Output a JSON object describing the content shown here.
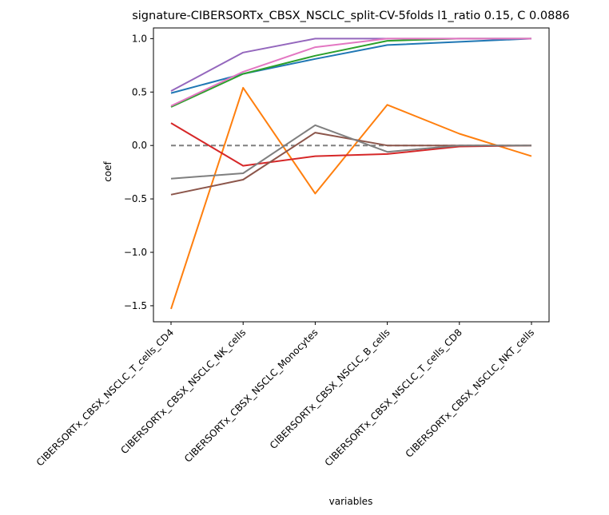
{
  "chart_data": {
    "type": "line",
    "title": "signature-CIBERSORTx_CBSX_NSCLC_split-CV-5folds l1_ratio 0.15, C 0.0886",
    "xlabel": "variables",
    "ylabel": "coef",
    "categories": [
      "CIBERSORTx_CBSX_NSCLC_T_cells_CD4",
      "CIBERSORTx_CBSX_NSCLC_NK_cells",
      "CIBERSORTx_CBSX_NSCLC_Monocytes",
      "CIBERSORTx_CBSX_NSCLC_B_cells",
      "CIBERSORTx_CBSX_NSCLC_T_cells_CD8",
      "CIBERSORTx_CBSX_NSCLC_NKT_cells"
    ],
    "ylim": [
      -1.65,
      1.1
    ],
    "yticks": [
      -1.5,
      -1.0,
      -0.5,
      0.0,
      0.5,
      1.0
    ],
    "ytick_labels": [
      "−1.5",
      "−1.0",
      "−0.5",
      "0.0",
      "0.5",
      "1.0"
    ],
    "grid": false,
    "legend": "none",
    "series": [
      {
        "color": "#1f77b4",
        "values": [
          0.49,
          0.67,
          0.81,
          0.94,
          0.97,
          1.0
        ]
      },
      {
        "color": "#ff7f0e",
        "values": [
          -1.53,
          0.54,
          -0.45,
          0.38,
          0.11,
          -0.1
        ]
      },
      {
        "color": "#2ca02c",
        "values": [
          0.36,
          0.67,
          0.84,
          0.98,
          1.0,
          1.0
        ]
      },
      {
        "color": "#d62728",
        "values": [
          0.21,
          -0.19,
          -0.1,
          -0.08,
          -0.01,
          0.0
        ]
      },
      {
        "color": "#9467bd",
        "values": [
          0.51,
          0.87,
          1.0,
          1.0,
          1.0,
          1.0
        ]
      },
      {
        "color": "#8c564b",
        "values": [
          -0.46,
          -0.32,
          0.12,
          0.0,
          0.0,
          0.0
        ]
      },
      {
        "color": "#e377c2",
        "values": [
          0.37,
          0.69,
          0.92,
          1.0,
          1.0,
          1.0
        ]
      },
      {
        "color": "#7f7f7f",
        "values": [
          -0.31,
          -0.26,
          0.19,
          -0.06,
          0.0,
          0.0
        ]
      }
    ],
    "reference_line": {
      "y": 0.0,
      "color": "#7f7f7f",
      "style": "dashed"
    }
  }
}
